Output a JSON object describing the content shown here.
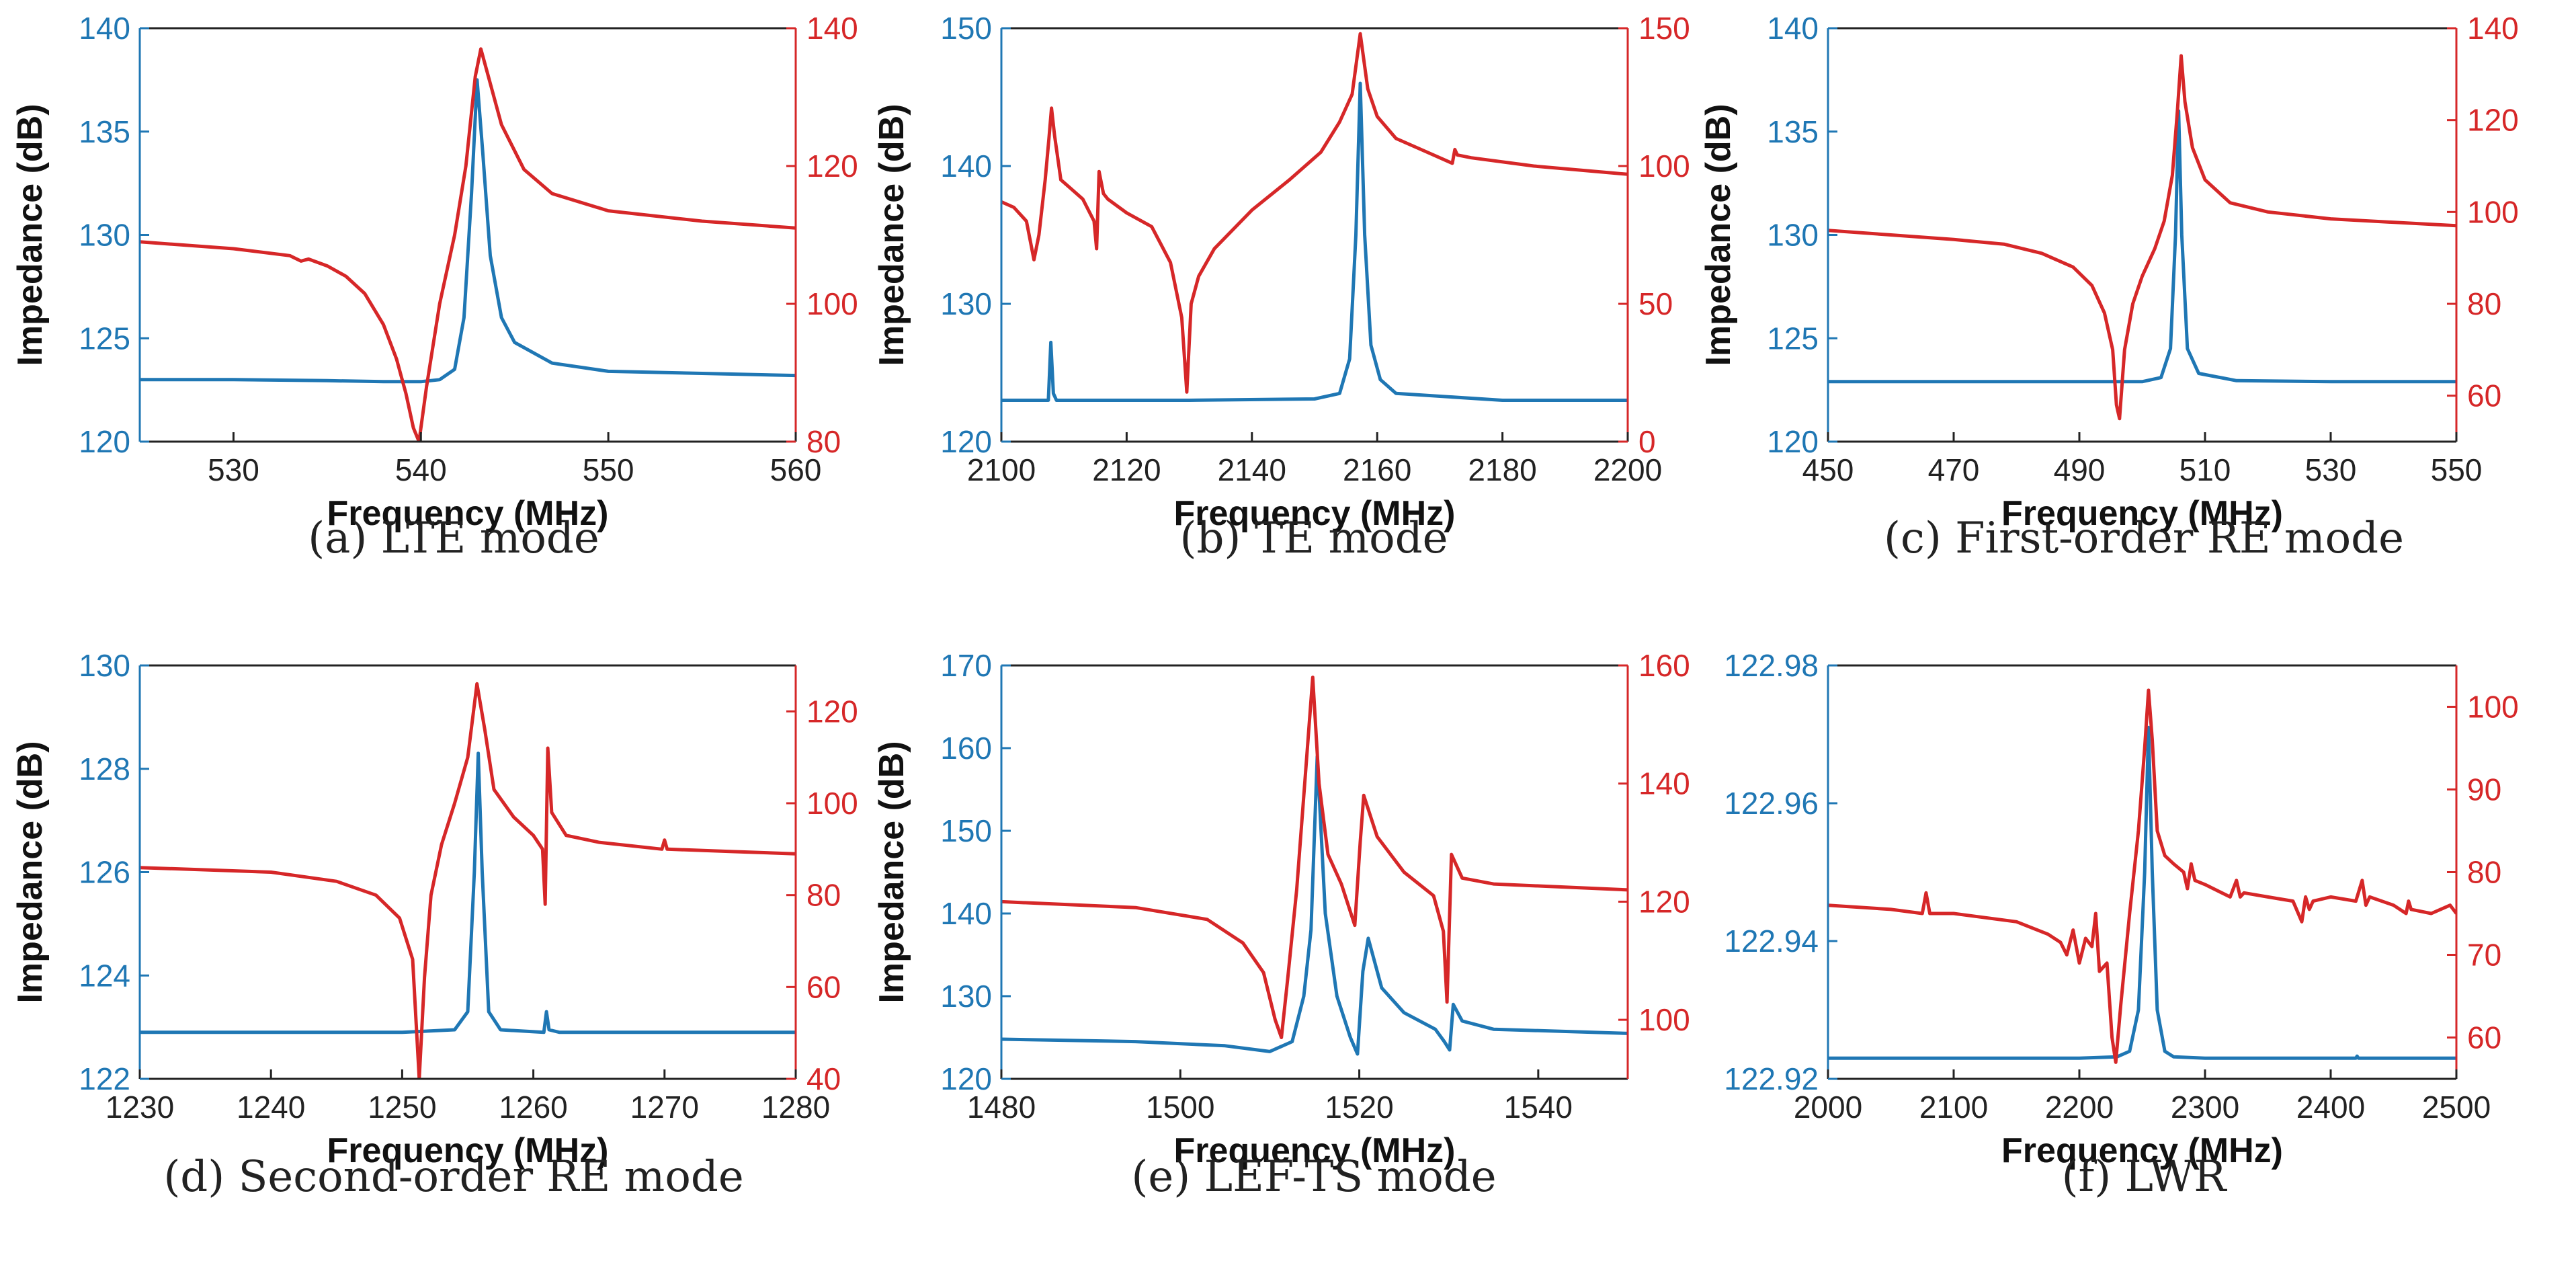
{
  "chart_data": [
    {
      "type": "line",
      "caption": "(a) LTE mode",
      "xlabel": "Frequency (MHz)",
      "ylabel": "Impedance (dB)",
      "ylabel_right": "",
      "xlim": [
        525,
        560
      ],
      "xticks": [
        530,
        540,
        550,
        560
      ],
      "ylim_left": [
        120,
        140
      ],
      "yticks_left": [
        120,
        125,
        130,
        135,
        140
      ],
      "ylim_right": [
        80,
        140
      ],
      "yticks_right": [
        80,
        100,
        120,
        140
      ],
      "colors": {
        "left": "#1f77b4",
        "right": "#d62728"
      },
      "series": [
        {
          "axis": "left",
          "color": "#1f77b4",
          "x": [
            525,
            530,
            535,
            538,
            540,
            541,
            541.8,
            542.3,
            542.7,
            543,
            543.3,
            543.7,
            544.3,
            545,
            547,
            550,
            555,
            560
          ],
          "y": [
            123.0,
            123.0,
            122.95,
            122.9,
            122.9,
            123.0,
            123.5,
            126.0,
            132.0,
            137.5,
            134.0,
            129.0,
            126.0,
            124.8,
            123.8,
            123.4,
            123.3,
            123.2
          ]
        },
        {
          "axis": "right",
          "color": "#d62728",
          "x": [
            525,
            530,
            533,
            533.6,
            534,
            535,
            536,
            537,
            538,
            538.7,
            539.2,
            539.6,
            539.9,
            540.3,
            541,
            541.8,
            542.4,
            542.9,
            543.2,
            543.6,
            544.3,
            545.5,
            547,
            550,
            555,
            560
          ],
          "y": [
            109.0,
            108.0,
            107.0,
            106.2,
            106.5,
            105.5,
            104.0,
            101.5,
            97.0,
            92.0,
            87.0,
            82.0,
            80.0,
            88.0,
            100.0,
            110.0,
            120.0,
            133.0,
            137.0,
            133.0,
            126.0,
            119.5,
            116.0,
            113.5,
            112.0,
            111.0
          ]
        }
      ]
    },
    {
      "type": "line",
      "caption": "(b) TE mode",
      "xlabel": "Frequency (MHz)",
      "ylabel": "Impedance (dB)",
      "ylabel_right": "",
      "xlim": [
        2100,
        2200
      ],
      "xticks": [
        2100,
        2120,
        2140,
        2160,
        2180,
        2200
      ],
      "ylim_left": [
        120,
        150
      ],
      "yticks_left": [
        120,
        130,
        140,
        150
      ],
      "ylim_right": [
        0,
        150
      ],
      "yticks_right": [
        0,
        50,
        100,
        150
      ],
      "colors": {
        "left": "#1f77b4",
        "right": "#d62728"
      },
      "series": [
        {
          "axis": "left",
          "color": "#1f77b4",
          "x": [
            2100,
            2107.5,
            2107.9,
            2108.3,
            2108.8,
            2109.5,
            2130,
            2150,
            2154,
            2155.6,
            2156.6,
            2157.3,
            2158,
            2159,
            2160.5,
            2163,
            2180,
            2200
          ],
          "y": [
            123.0,
            123.0,
            127.2,
            123.5,
            123.0,
            123.0,
            123.0,
            123.1,
            123.5,
            126.0,
            135.0,
            146.0,
            135.0,
            127.0,
            124.5,
            123.5,
            123.0,
            123.0
          ]
        },
        {
          "axis": "right",
          "color": "#d62728",
          "x": [
            2100,
            2102,
            2104,
            2105.2,
            2106,
            2107,
            2107.6,
            2108,
            2108.5,
            2109.5,
            2111,
            2113,
            2114.8,
            2115.2,
            2115.6,
            2116.3,
            2117,
            2120,
            2124,
            2127,
            2128.8,
            2129.6,
            2130.3,
            2131.5,
            2134,
            2140,
            2146,
            2151,
            2154,
            2156,
            2157.3,
            2158.5,
            2160,
            2163,
            2168,
            2172,
            2172.4,
            2172.8,
            2175,
            2185,
            2200
          ],
          "y": [
            87,
            85,
            80,
            66,
            75,
            95,
            110,
            121,
            111,
            95,
            92,
            88,
            80,
            70,
            98,
            90,
            88,
            83,
            78,
            65,
            45,
            18,
            50,
            60,
            70,
            84,
            95,
            105,
            116,
            126,
            148,
            128,
            118,
            110,
            105,
            101,
            106,
            104,
            103,
            100,
            97
          ]
        }
      ]
    },
    {
      "type": "line",
      "caption": "(c) First-order RE mode",
      "xlabel": "Frequency (MHz)",
      "ylabel": "Impedance (dB)",
      "ylabel_right": "",
      "xlim": [
        450,
        550
      ],
      "xticks": [
        450,
        470,
        490,
        510,
        530,
        550
      ],
      "ylim_left": [
        120,
        140
      ],
      "yticks_left": [
        120,
        125,
        130,
        135,
        140
      ],
      "ylim_right": [
        50,
        140
      ],
      "yticks_right": [
        60,
        80,
        100,
        120,
        140
      ],
      "colors": {
        "left": "#1f77b4",
        "right": "#d62728"
      },
      "series": [
        {
          "axis": "left",
          "color": "#1f77b4",
          "x": [
            450,
            480,
            500,
            503,
            504.5,
            505.3,
            505.8,
            506.3,
            507.2,
            509,
            515,
            530,
            550
          ],
          "y": [
            122.9,
            122.9,
            122.9,
            123.1,
            124.5,
            130.0,
            136.0,
            130.0,
            124.5,
            123.3,
            122.95,
            122.9,
            122.9
          ]
        },
        {
          "axis": "right",
          "color": "#d62728",
          "x": [
            450,
            460,
            470,
            478,
            484,
            489,
            492,
            494,
            495.3,
            495.9,
            496.4,
            497.2,
            498.5,
            500,
            502,
            503.5,
            504.8,
            505.6,
            506.2,
            506.8,
            508,
            510,
            514,
            520,
            530,
            550
          ],
          "y": [
            96.0,
            95.0,
            94.0,
            93.0,
            91.0,
            88.0,
            84.0,
            78.0,
            70.0,
            58.0,
            55.0,
            70.0,
            80.0,
            86.0,
            92.0,
            98.0,
            108.0,
            122.0,
            134.0,
            124.0,
            114.0,
            107.0,
            102.0,
            100.0,
            98.5,
            97.0
          ]
        }
      ]
    },
    {
      "type": "line",
      "caption": "(d) Second-order RE mode",
      "xlabel": "Frequency (MHz)",
      "ylabel": "Impedance (dB)",
      "ylabel_right": "",
      "xlim": [
        1230,
        1280
      ],
      "xticks": [
        1230,
        1240,
        1250,
        1260,
        1270,
        1280
      ],
      "ylim_left": [
        122,
        130
      ],
      "yticks_left": [
        122,
        124,
        126,
        128,
        130
      ],
      "ylim_right": [
        40,
        130
      ],
      "yticks_right": [
        40,
        60,
        80,
        100,
        120
      ],
      "colors": {
        "left": "#1f77b4",
        "right": "#d62728"
      },
      "series": [
        {
          "axis": "left",
          "color": "#1f77b4",
          "x": [
            1230,
            1250,
            1254,
            1255,
            1255.5,
            1255.8,
            1256.1,
            1256.6,
            1257.5,
            1260.8,
            1261.0,
            1261.2,
            1262,
            1280
          ],
          "y": [
            122.9,
            122.9,
            122.95,
            123.3,
            126.0,
            128.3,
            126.0,
            123.3,
            122.95,
            122.9,
            123.3,
            122.95,
            122.9,
            122.9
          ]
        },
        {
          "axis": "right",
          "color": "#d62728",
          "x": [
            1230,
            1240,
            1245,
            1248,
            1249.8,
            1250.8,
            1251.3,
            1251.7,
            1252.2,
            1253,
            1254,
            1255,
            1255.7,
            1256.3,
            1257,
            1258.5,
            1260,
            1260.7,
            1260.9,
            1261.1,
            1261.4,
            1262.5,
            1265,
            1269.8,
            1270,
            1270.2,
            1275,
            1280
          ],
          "y": [
            86.0,
            85.0,
            83.0,
            80.0,
            75.0,
            66.0,
            40.0,
            62.0,
            80.0,
            91.0,
            100.0,
            110.0,
            126.0,
            116.0,
            103.0,
            97.0,
            93.0,
            90.0,
            78.0,
            112.0,
            98.0,
            93.0,
            91.5,
            90.0,
            92.0,
            90.0,
            89.5,
            89.0
          ]
        }
      ]
    },
    {
      "type": "line",
      "caption": "(e) LEF-TS mode",
      "xlabel": "Frequency (MHz)",
      "ylabel": "Impedance (dB)",
      "ylabel_right": "",
      "xlim": [
        1480,
        1550
      ],
      "xticks": [
        1480,
        1500,
        1520,
        1540
      ],
      "ylim_left": [
        120,
        170
      ],
      "yticks_left": [
        120,
        130,
        140,
        150,
        160,
        170
      ],
      "ylim_right": [
        90,
        160
      ],
      "yticks_right": [
        100,
        120,
        140,
        160
      ],
      "colors": {
        "left": "#1f77b4",
        "right": "#d62728"
      },
      "series": [
        {
          "axis": "left",
          "color": "#1f77b4",
          "x": [
            1480,
            1495,
            1505,
            1510,
            1512.5,
            1513.8,
            1514.6,
            1515.3,
            1516.2,
            1517.5,
            1519,
            1519.8,
            1520.4,
            1521,
            1522.5,
            1525,
            1528.5,
            1529.5,
            1530.1,
            1530.5,
            1531.5,
            1535,
            1550
          ],
          "y": [
            124.8,
            124.5,
            124.0,
            123.3,
            124.5,
            130.0,
            138.0,
            159.0,
            140.0,
            130.0,
            125.0,
            123.0,
            133.0,
            137.0,
            131.0,
            128.0,
            126.0,
            124.5,
            123.5,
            129.0,
            127.0,
            126.0,
            125.5
          ]
        },
        {
          "axis": "right",
          "color": "#d62728",
          "x": [
            1480,
            1495,
            1503,
            1507,
            1509.3,
            1510.6,
            1511.3,
            1512,
            1513,
            1514,
            1514.8,
            1515.5,
            1516.5,
            1518,
            1519.5,
            1520.1,
            1520.5,
            1522,
            1525,
            1528.3,
            1529.4,
            1529.8,
            1530.3,
            1531.5,
            1535,
            1550
          ],
          "y": [
            120.0,
            119.0,
            117.0,
            113.0,
            108.0,
            100.0,
            97.0,
            107.0,
            122.0,
            142.0,
            158.0,
            140.0,
            128.0,
            123.0,
            116.0,
            130.0,
            138.0,
            131.0,
            125.0,
            121.0,
            115.0,
            103.0,
            128.0,
            124.0,
            123.0,
            122.0
          ]
        }
      ]
    },
    {
      "type": "line",
      "caption": "(f) LWR",
      "xlabel": "Frequency (MHz)",
      "ylabel": "",
      "ylabel_right": "",
      "xlim": [
        2000,
        2500
      ],
      "xticks": [
        2000,
        2100,
        2200,
        2300,
        2400,
        2500
      ],
      "ylim_left": [
        122.92,
        122.98
      ],
      "yticks_left": [
        122.92,
        122.94,
        122.96,
        122.98
      ],
      "ylim_right": [
        55,
        105
      ],
      "yticks_right": [
        60,
        70,
        80,
        90,
        100
      ],
      "colors": {
        "left": "#1f77b4",
        "right": "#d62728"
      },
      "series": [
        {
          "axis": "left",
          "color": "#1f77b4",
          "x": [
            2000,
            2200,
            2230,
            2240,
            2247,
            2252,
            2255,
            2258,
            2262,
            2268,
            2275,
            2300,
            2420,
            2421,
            2422,
            2500
          ],
          "y": [
            122.923,
            122.923,
            122.9232,
            122.924,
            122.93,
            122.95,
            122.971,
            122.95,
            122.93,
            122.924,
            122.9232,
            122.923,
            122.923,
            122.9233,
            122.923,
            122.923
          ]
        },
        {
          "axis": "right",
          "color": "#d62728",
          "x": [
            2000,
            2050,
            2075,
            2078,
            2081,
            2100,
            2150,
            2175,
            2185,
            2190,
            2195,
            2200,
            2205,
            2210,
            2213,
            2216,
            2222,
            2226,
            2229,
            2233,
            2240,
            2247,
            2252,
            2255,
            2258,
            2262,
            2268,
            2275,
            2283,
            2286,
            2289,
            2292,
            2300,
            2320,
            2325,
            2328,
            2331,
            2350,
            2370,
            2377,
            2380,
            2383,
            2386,
            2400,
            2420,
            2425,
            2428,
            2431,
            2450,
            2460,
            2462,
            2464,
            2480,
            2495,
            2500
          ],
          "y": [
            76.0,
            75.5,
            75.0,
            77.5,
            75.0,
            75.0,
            74.0,
            72.5,
            71.5,
            70.0,
            73.0,
            69.0,
            72.0,
            71.0,
            75.0,
            68.0,
            69.0,
            60.0,
            57.0,
            64.0,
            75.0,
            85.0,
            95.0,
            102.0,
            96.0,
            85.0,
            82.0,
            81.0,
            80.0,
            78.0,
            81.0,
            79.0,
            78.5,
            77.0,
            79.0,
            77.0,
            77.5,
            77.0,
            76.5,
            74.0,
            77.0,
            75.5,
            76.5,
            77.0,
            76.5,
            79.0,
            76.0,
            77.0,
            76.0,
            75.0,
            76.5,
            75.5,
            75.0,
            76.0,
            75.0
          ]
        }
      ]
    }
  ]
}
